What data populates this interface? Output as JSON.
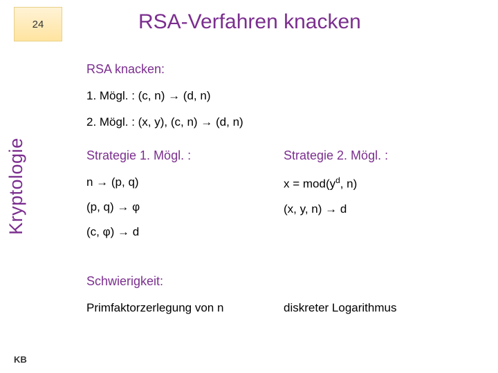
{
  "page": {
    "number": "24"
  },
  "title": "RSA-Verfahren knacken",
  "sidebar": "Kryptologie",
  "footer": "KB",
  "intro": {
    "heading": "RSA knacken:",
    "opt1": "1. Mögl. : (c, n) → (d, n)",
    "opt2": "2. Mögl. : (x, y), (c, n) → (d, n)"
  },
  "strategies": {
    "left": {
      "head": "Strategie 1. Mögl. :",
      "l1": "n → (p, q)",
      "l2": "(p, q) → φ",
      "l3": "(c, φ) → d"
    },
    "right": {
      "head": "Strategie 2. Mögl. :",
      "l1_pre": " x = mod(y",
      "l1_sup": "d",
      "l1_post": ", n)",
      "l2": "(x, y, n) → d"
    }
  },
  "difficulty": {
    "heading": "Schwierigkeit:",
    "left": "Primfaktorzerlegung von n",
    "right": "diskreter Logarithmus"
  },
  "colors": {
    "accent": "#7b2e8f",
    "gradient_top": "#fff3d6",
    "gradient_bottom": "#ffe4a0"
  }
}
